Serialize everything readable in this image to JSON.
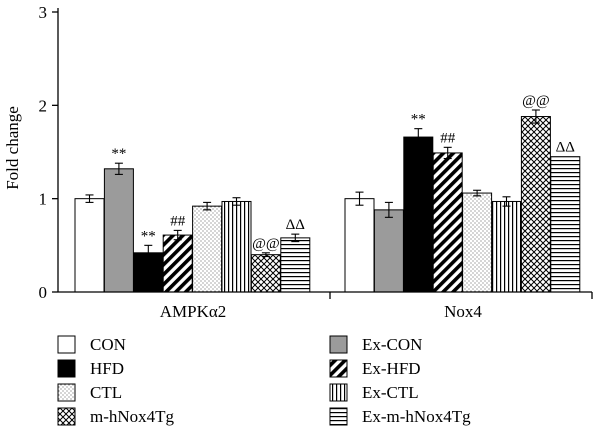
{
  "chart_data": {
    "type": "bar",
    "title": "",
    "ylabel": "Fold change",
    "xlabel": "",
    "ylim": [
      0,
      3
    ],
    "yticks": [
      "0",
      "1",
      "2",
      "3"
    ],
    "categories": [
      "AMPKα2",
      "Nox4"
    ],
    "series": [
      {
        "name": "CON",
        "pattern": "white",
        "values": [
          1.0,
          1.0
        ],
        "errors": [
          0.04,
          0.07
        ],
        "annotations": [
          "",
          ""
        ]
      },
      {
        "name": "Ex-CON",
        "pattern": "gray",
        "values": [
          1.32,
          0.88
        ],
        "errors": [
          0.06,
          0.08
        ],
        "annotations": [
          "**",
          ""
        ]
      },
      {
        "name": "HFD",
        "pattern": "black",
        "values": [
          0.42,
          1.66
        ],
        "errors": [
          0.08,
          0.09
        ],
        "annotations": [
          "**",
          "**"
        ]
      },
      {
        "name": "Ex-HFD",
        "pattern": "diagonal-thick",
        "values": [
          0.61,
          1.49
        ],
        "errors": [
          0.05,
          0.06
        ],
        "annotations": [
          "##",
          "##"
        ]
      },
      {
        "name": "CTL",
        "pattern": "dots",
        "values": [
          0.92,
          1.06
        ],
        "errors": [
          0.04,
          0.03
        ],
        "annotations": [
          "",
          ""
        ]
      },
      {
        "name": "Ex-CTL",
        "pattern": "vertical",
        "values": [
          0.97,
          0.97
        ],
        "errors": [
          0.04,
          0.05
        ],
        "annotations": [
          "",
          ""
        ]
      },
      {
        "name": "m-hNox4Tg",
        "pattern": "crosshatch",
        "values": [
          0.4,
          1.88
        ],
        "errors": [
          0.02,
          0.07
        ],
        "annotations": [
          "@@",
          "@@"
        ]
      },
      {
        "name": "Ex-m-hNox4Tg",
        "pattern": "horizontal",
        "values": [
          0.58,
          1.45
        ],
        "errors": [
          0.04,
          0.0
        ],
        "annotations": [
          "ΔΔ",
          "ΔΔ"
        ]
      }
    ],
    "legend_placement": "bottom, two columns"
  }
}
